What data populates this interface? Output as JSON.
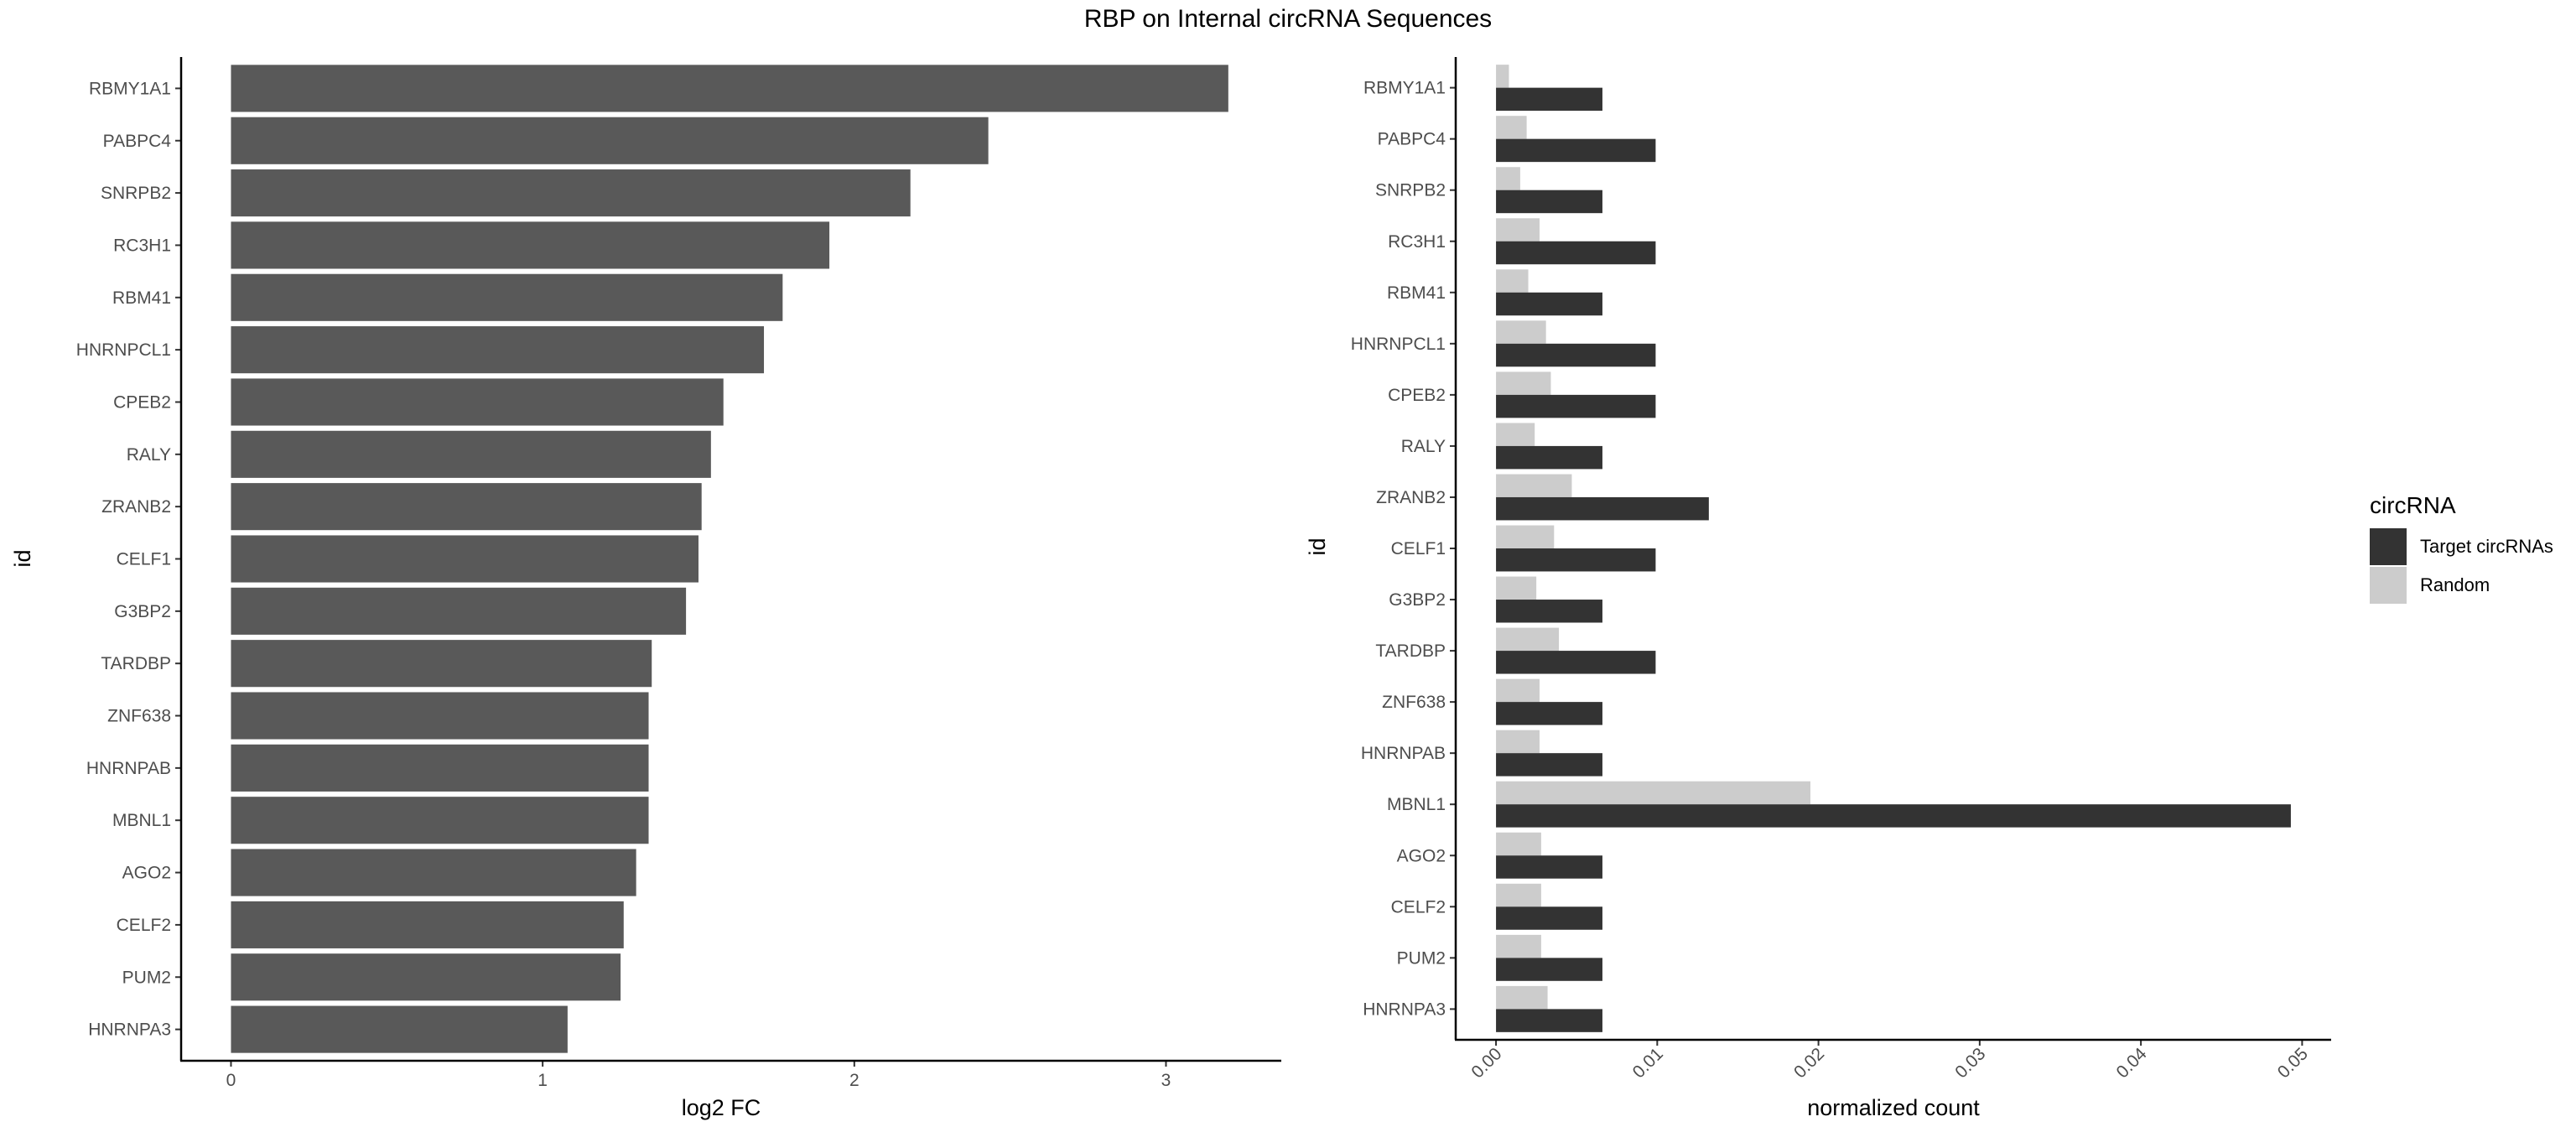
{
  "title": "RBP on Internal circRNA Sequences",
  "chart_data": [
    {
      "type": "bar",
      "orientation": "horizontal",
      "categories": [
        "RBMY1A1",
        "PABPC4",
        "SNRPB2",
        "RC3H1",
        "RBM41",
        "HNRNPCL1",
        "CPEB2",
        "RALY",
        "ZRANB2",
        "CELF1",
        "G3BP2",
        "TARDBP",
        "ZNF638",
        "HNRNPAB",
        "MBNL1",
        "AGO2",
        "CELF2",
        "PUM2",
        "HNRNPA3"
      ],
      "values": [
        3.2,
        2.43,
        2.18,
        1.92,
        1.77,
        1.71,
        1.58,
        1.54,
        1.51,
        1.5,
        1.46,
        1.35,
        1.34,
        1.34,
        1.34,
        1.3,
        1.26,
        1.25,
        1.08
      ],
      "xlabel": "log2 FC",
      "ylabel": "id",
      "xlim": [
        -0.16,
        3.37
      ],
      "xticks": [
        "0",
        "1",
        "2",
        "3"
      ],
      "xtick_values": [
        0,
        1,
        2,
        3
      ],
      "bar_color": "#595959",
      "grid": false
    },
    {
      "type": "bar",
      "orientation": "horizontal",
      "categories": [
        "RBMY1A1",
        "PABPC4",
        "SNRPB2",
        "RC3H1",
        "RBM41",
        "HNRNPCL1",
        "CPEB2",
        "RALY",
        "ZRANB2",
        "CELF1",
        "G3BP2",
        "TARDBP",
        "ZNF638",
        "HNRNPAB",
        "MBNL1",
        "AGO2",
        "CELF2",
        "PUM2",
        "HNRNPA3"
      ],
      "series": [
        {
          "name": "Random",
          "values": [
            0.0008,
            0.0019,
            0.0015,
            0.0027,
            0.002,
            0.0031,
            0.0034,
            0.0024,
            0.0047,
            0.0036,
            0.0025,
            0.0039,
            0.0027,
            0.0027,
            0.0195,
            0.0028,
            0.0028,
            0.0028,
            0.0032
          ],
          "color": "#cccccc"
        },
        {
          "name": "Target circRNAs",
          "values": [
            0.0066,
            0.0099,
            0.0066,
            0.0099,
            0.0066,
            0.0099,
            0.0099,
            0.0066,
            0.0132,
            0.0099,
            0.0066,
            0.0099,
            0.0066,
            0.0066,
            0.0493,
            0.0066,
            0.0066,
            0.0066,
            0.0066
          ],
          "color": "#333333"
        }
      ],
      "xlabel": "normalized count",
      "ylabel": "id",
      "xlim": [
        -0.0025,
        0.0518
      ],
      "xticks": [
        "0.00",
        "0.01",
        "0.02",
        "0.03",
        "0.04",
        "0.05"
      ],
      "xtick_values": [
        0,
        0.01,
        0.02,
        0.03,
        0.04,
        0.05
      ],
      "grid": false,
      "legend": {
        "title": "circRNA",
        "position": "right",
        "entries": [
          {
            "label": "Target circRNAs",
            "color": "#333333"
          },
          {
            "label": "Random",
            "color": "#cccccc"
          }
        ]
      }
    }
  ]
}
